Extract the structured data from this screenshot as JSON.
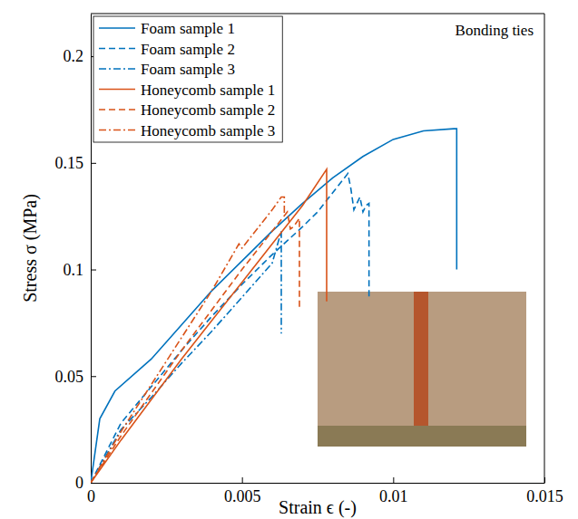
{
  "chart_data": {
    "type": "line",
    "annotation": "Bonding ties",
    "x_label": "Strain ϵ (-)",
    "y_label": "Stress σ (MPa)",
    "xlim": [
      0,
      0.015
    ],
    "ylim": [
      0,
      0.22
    ],
    "xticks": [
      0,
      0.005,
      0.01,
      0.015
    ],
    "yticks": [
      0,
      0.05,
      0.1,
      0.15,
      0.2
    ],
    "legend": "upper left",
    "grid": false,
    "series": [
      {
        "name": "Foam sample 1",
        "color": "#0072bd",
        "line_style": "solid",
        "x": [
          0,
          0.0003,
          0.0008,
          0.002,
          0.003,
          0.004,
          0.005,
          0.006,
          0.007,
          0.008,
          0.009,
          0.01,
          0.011,
          0.012,
          0.0121,
          0.0121
        ],
        "values": [
          0,
          0.03,
          0.043,
          0.058,
          0.074,
          0.09,
          0.104,
          0.118,
          0.131,
          0.143,
          0.153,
          0.161,
          0.165,
          0.166,
          0.166,
          0.1
        ]
      },
      {
        "name": "Foam sample 2",
        "color": "#0072bd",
        "line_style": "dashed",
        "x": [
          0,
          0.001,
          0.002,
          0.003,
          0.004,
          0.005,
          0.006,
          0.007,
          0.0075,
          0.008,
          0.0085,
          0.0086,
          0.0087,
          0.0089,
          0.009,
          0.0091,
          0.0092,
          0.0092
        ],
        "values": [
          0,
          0.028,
          0.045,
          0.062,
          0.078,
          0.093,
          0.107,
          0.12,
          0.127,
          0.136,
          0.145,
          0.138,
          0.128,
          0.134,
          0.127,
          0.13,
          0.131,
          0.086
        ]
      },
      {
        "name": "Foam sample 3",
        "color": "#0072bd",
        "line_style": "dashdot",
        "x": [
          0,
          0.001,
          0.002,
          0.003,
          0.004,
          0.005,
          0.006,
          0.0063,
          0.0063
        ],
        "values": [
          0,
          0.025,
          0.04,
          0.056,
          0.071,
          0.087,
          0.103,
          0.118,
          0.07
        ]
      },
      {
        "name": "Honeycomb sample 1",
        "color": "#d95319",
        "line_style": "solid",
        "x": [
          0,
          0.001,
          0.002,
          0.003,
          0.004,
          0.005,
          0.006,
          0.007,
          0.0078,
          0.0078
        ],
        "values": [
          0,
          0.02,
          0.039,
          0.058,
          0.076,
          0.094,
          0.112,
          0.13,
          0.147,
          0.085
        ]
      },
      {
        "name": "Honeycomb sample 2",
        "color": "#d95319",
        "line_style": "dashed",
        "x": [
          0,
          0.001,
          0.002,
          0.003,
          0.004,
          0.005,
          0.006,
          0.0065,
          0.0066,
          0.0067,
          0.0069,
          0.0069
        ],
        "values": [
          0,
          0.022,
          0.042,
          0.062,
          0.081,
          0.1,
          0.118,
          0.127,
          0.119,
          0.12,
          0.124,
          0.081
        ]
      },
      {
        "name": "Honeycomb sample 3",
        "color": "#d95319",
        "line_style": "dashdot",
        "x": [
          0,
          0.001,
          0.002,
          0.003,
          0.004,
          0.0049,
          0.005,
          0.006,
          0.0063,
          0.0064,
          0.0064
        ],
        "values": [
          0,
          0.024,
          0.046,
          0.068,
          0.09,
          0.112,
          0.11,
          0.128,
          0.134,
          0.134,
          0.126
        ]
      }
    ]
  }
}
